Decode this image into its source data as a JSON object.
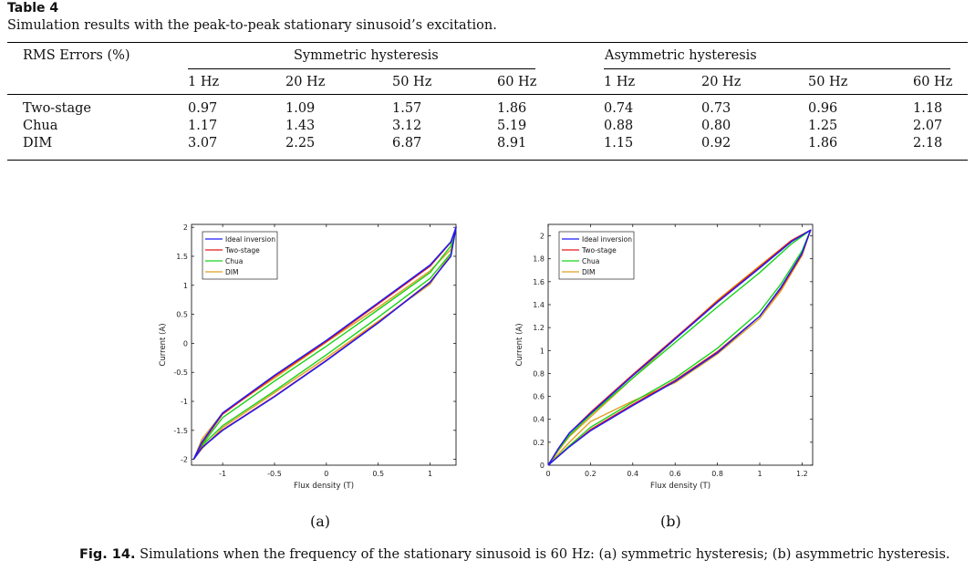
{
  "table": {
    "label": "Table 4",
    "caption": "Simulation results with the peak-to-peak stationary sinusoid’s excitation.",
    "row_header": "RMS Errors (%)",
    "groups": [
      "Symmetric hysteresis",
      "Asymmetric hysteresis"
    ],
    "frequencies": [
      "1 Hz",
      "20 Hz",
      "50 Hz",
      "60 Hz",
      "1 Hz",
      "20 Hz",
      "50 Hz",
      "60 Hz"
    ],
    "rows": [
      {
        "name": "Two-stage",
        "values": [
          "0.97",
          "1.09",
          "1.57",
          "1.86",
          "0.74",
          "0.73",
          "0.96",
          "1.18"
        ]
      },
      {
        "name": "Chua",
        "values": [
          "1.17",
          "1.43",
          "3.12",
          "5.19",
          "0.88",
          "0.80",
          "1.25",
          "2.07"
        ]
      },
      {
        "name": "DIM",
        "values": [
          "3.07",
          "2.25",
          "6.87",
          "8.91",
          "1.15",
          "0.92",
          "1.86",
          "2.18"
        ]
      }
    ]
  },
  "figure": {
    "sub_labels": [
      "(a)",
      "(b)"
    ],
    "caption_id": "Fig. 14.",
    "caption_text": " Simulations when the frequency of the stationary sinusoid is 60 Hz: (a) symmetric hysteresis; (b) asymmetric hysteresis."
  },
  "chart_data": [
    {
      "type": "line",
      "xlabel": "Flux density (T)",
      "ylabel": "Current (A)",
      "xlim": [
        -1.3,
        1.25
      ],
      "ylim": [
        -2.1,
        2.05
      ],
      "xticks": [
        -1,
        -0.5,
        0,
        0.5,
        1
      ],
      "xtick_labels": [
        "-1",
        "-0.5",
        "0",
        "0.5",
        "1"
      ],
      "yticks": [
        -2,
        -1.5,
        -1,
        -0.5,
        0,
        0.5,
        1,
        1.5,
        2
      ],
      "ytick_labels": [
        "-2",
        "-1.5",
        "-1",
        "-0.5",
        "0",
        "0.5",
        "1",
        "1.5",
        "2"
      ],
      "legend": [
        "Ideal inversion",
        "Two-stage",
        "Chua",
        "DIM"
      ],
      "legend_position": "top-left",
      "colors": {
        "Ideal inversion": "#1a1aff",
        "Two-stage": "#e61919",
        "Chua": "#19d219",
        "DIM": "#e0a020"
      },
      "series": [
        {
          "name": "Ideal inversion",
          "x": [
            -1.28,
            -1.2,
            -1.0,
            -0.5,
            0.0,
            0.5,
            1.0,
            1.2,
            1.25,
            1.2,
            1.0,
            0.5,
            0.0,
            -0.5,
            -1.0,
            -1.2,
            -1.28
          ],
          "y": [
            -2.0,
            -1.7,
            -1.2,
            -0.55,
            0.05,
            0.7,
            1.35,
            1.75,
            2.0,
            1.5,
            1.05,
            0.35,
            -0.3,
            -0.92,
            -1.5,
            -1.8,
            -2.0
          ]
        },
        {
          "name": "Two-stage",
          "x": [
            -1.28,
            -1.2,
            -1.0,
            -0.5,
            0.0,
            0.5,
            1.0,
            1.2,
            1.25,
            1.2,
            1.0,
            0.5,
            0.0,
            -0.5,
            -1.0,
            -1.2,
            -1.28
          ],
          "y": [
            -2.0,
            -1.72,
            -1.22,
            -0.57,
            0.03,
            0.68,
            1.33,
            1.74,
            2.0,
            1.5,
            1.06,
            0.36,
            -0.29,
            -0.91,
            -1.49,
            -1.79,
            -2.0
          ]
        },
        {
          "name": "Chua",
          "x": [
            -1.28,
            -1.2,
            -1.0,
            -0.5,
            0.0,
            0.5,
            1.0,
            1.2,
            1.25,
            1.2,
            1.0,
            0.5,
            0.0,
            -0.5,
            -1.0,
            -1.2,
            -1.28
          ],
          "y": [
            -2.0,
            -1.75,
            -1.28,
            -0.65,
            -0.05,
            0.58,
            1.22,
            1.68,
            2.0,
            1.55,
            1.12,
            0.45,
            -0.2,
            -0.82,
            -1.42,
            -1.76,
            -2.0
          ]
        },
        {
          "name": "DIM",
          "x": [
            -1.28,
            -1.2,
            -1.0,
            -0.5,
            0.0,
            0.5,
            1.0,
            1.2,
            1.25,
            1.2,
            1.0,
            0.5,
            0.0,
            -0.5,
            -1.0,
            -1.2,
            -1.28
          ],
          "y": [
            -2.0,
            -1.82,
            -1.45,
            -0.85,
            -0.25,
            0.38,
            1.02,
            1.55,
            2.0,
            1.62,
            1.25,
            0.62,
            0.02,
            -0.6,
            -1.2,
            -1.65,
            -2.0
          ]
        }
      ]
    },
    {
      "type": "line",
      "xlabel": "Flux density (T)",
      "ylabel": "Current (A)",
      "xlim": [
        0,
        1.25
      ],
      "ylim": [
        0,
        2.1
      ],
      "xticks": [
        0,
        0.2,
        0.4,
        0.6,
        0.8,
        1,
        1.2
      ],
      "xtick_labels": [
        "0",
        "0.2",
        "0.4",
        "0.6",
        "0.8",
        "1",
        "1.2"
      ],
      "yticks": [
        0,
        0.2,
        0.4,
        0.6,
        0.8,
        1,
        1.2,
        1.4,
        1.6,
        1.8,
        2
      ],
      "ytick_labels": [
        "0",
        "0.2",
        "0.4",
        "0.6",
        "0.8",
        "1",
        "1.2",
        "1.4",
        "1.6",
        "1.8",
        "2"
      ],
      "legend": [
        "Ideal inversion",
        "Two-stage",
        "Chua",
        "DIM"
      ],
      "legend_position": "top-left",
      "colors": {
        "Ideal inversion": "#1a1aff",
        "Two-stage": "#e61919",
        "Chua": "#19d219",
        "DIM": "#e0a020"
      },
      "series": [
        {
          "name": "Ideal inversion",
          "x": [
            0.0,
            0.05,
            0.1,
            0.2,
            0.4,
            0.6,
            0.8,
            1.0,
            1.15,
            1.24,
            1.2,
            1.1,
            1.0,
            0.8,
            0.6,
            0.4,
            0.2,
            0.1,
            0.0
          ],
          "y": [
            0.0,
            0.15,
            0.28,
            0.45,
            0.78,
            1.1,
            1.42,
            1.72,
            1.95,
            2.05,
            1.85,
            1.55,
            1.3,
            0.98,
            0.73,
            0.52,
            0.3,
            0.16,
            0.0
          ]
        },
        {
          "name": "Two-stage",
          "x": [
            0.0,
            0.05,
            0.1,
            0.2,
            0.4,
            0.6,
            0.8,
            1.0,
            1.15,
            1.24,
            1.2,
            1.1,
            1.0,
            0.8,
            0.6,
            0.4,
            0.2,
            0.1,
            0.0
          ],
          "y": [
            0.0,
            0.15,
            0.28,
            0.46,
            0.79,
            1.11,
            1.43,
            1.73,
            1.96,
            2.05,
            1.84,
            1.54,
            1.3,
            0.99,
            0.74,
            0.53,
            0.31,
            0.16,
            0.0
          ]
        },
        {
          "name": "Chua",
          "x": [
            0.0,
            0.05,
            0.1,
            0.2,
            0.4,
            0.6,
            0.8,
            1.0,
            1.15,
            1.24,
            1.2,
            1.1,
            1.0,
            0.8,
            0.6,
            0.4,
            0.2,
            0.1,
            0.0
          ],
          "y": [
            0.0,
            0.14,
            0.26,
            0.44,
            0.76,
            1.07,
            1.38,
            1.68,
            1.93,
            2.05,
            1.87,
            1.58,
            1.34,
            1.02,
            0.76,
            0.55,
            0.33,
            0.17,
            0.0
          ]
        },
        {
          "name": "DIM",
          "x": [
            0.0,
            0.05,
            0.1,
            0.2,
            0.4,
            0.6,
            0.8,
            1.0,
            1.15,
            1.24,
            1.2,
            1.1,
            1.0,
            0.8,
            0.6,
            0.4,
            0.2,
            0.1,
            0.0
          ],
          "y": [
            0.0,
            0.13,
            0.25,
            0.42,
            0.76,
            1.1,
            1.44,
            1.74,
            1.96,
            2.05,
            1.83,
            1.52,
            1.28,
            0.97,
            0.72,
            0.56,
            0.38,
            0.2,
            0.0
          ]
        }
      ]
    }
  ]
}
